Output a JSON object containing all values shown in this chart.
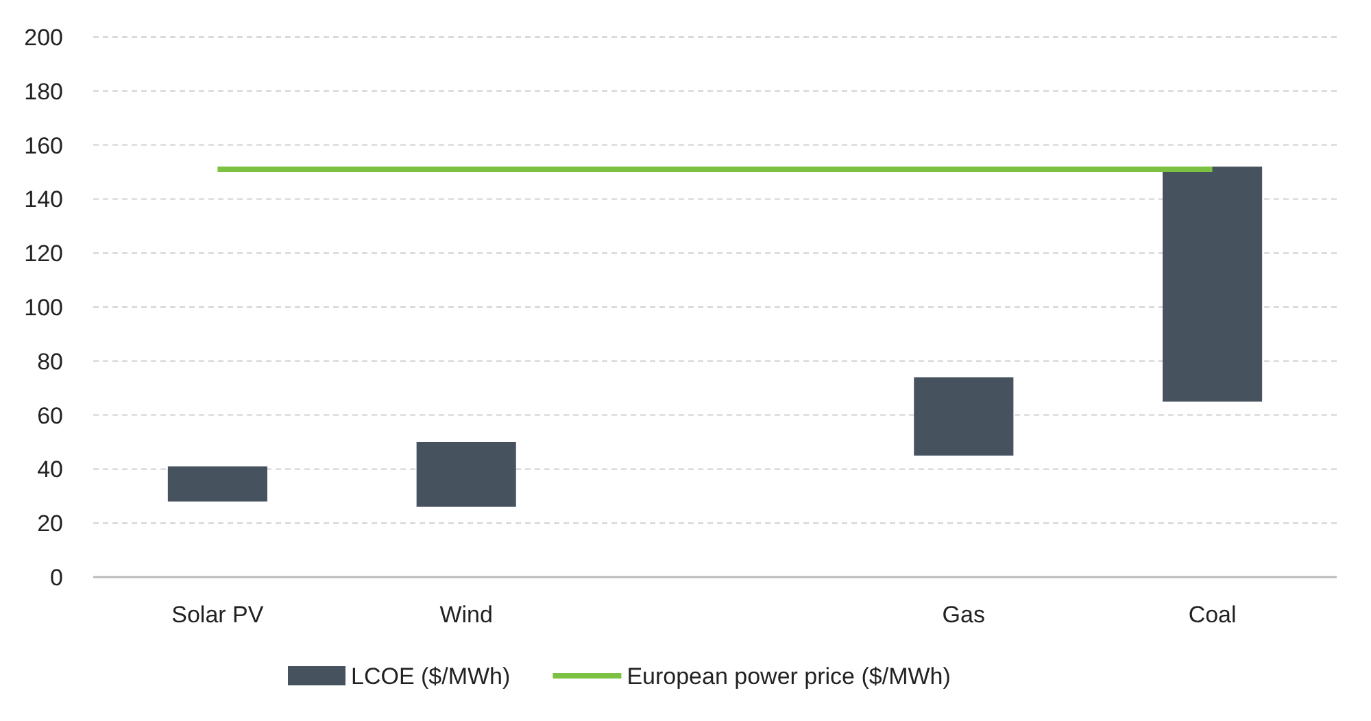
{
  "chart_data": {
    "type": "bar",
    "categories": [
      "Solar PV",
      "Wind",
      null,
      "Gas",
      "Coal"
    ],
    "series": [
      {
        "name": "LCOE ($/MWh)",
        "color": "#46535e",
        "base": [
          28,
          26,
          null,
          45,
          65
        ],
        "values": [
          13,
          24,
          null,
          29,
          87
        ]
      },
      {
        "type": "line",
        "name": "European power price ($/MWh)",
        "color": "#7dc142",
        "values": [
          151,
          151,
          151,
          151,
          151
        ]
      }
    ],
    "ylim": [
      0,
      200
    ],
    "yticks": [
      0,
      20,
      40,
      60,
      80,
      100,
      120,
      140,
      160,
      180,
      200
    ],
    "grid": "y",
    "legend": "bottom"
  }
}
